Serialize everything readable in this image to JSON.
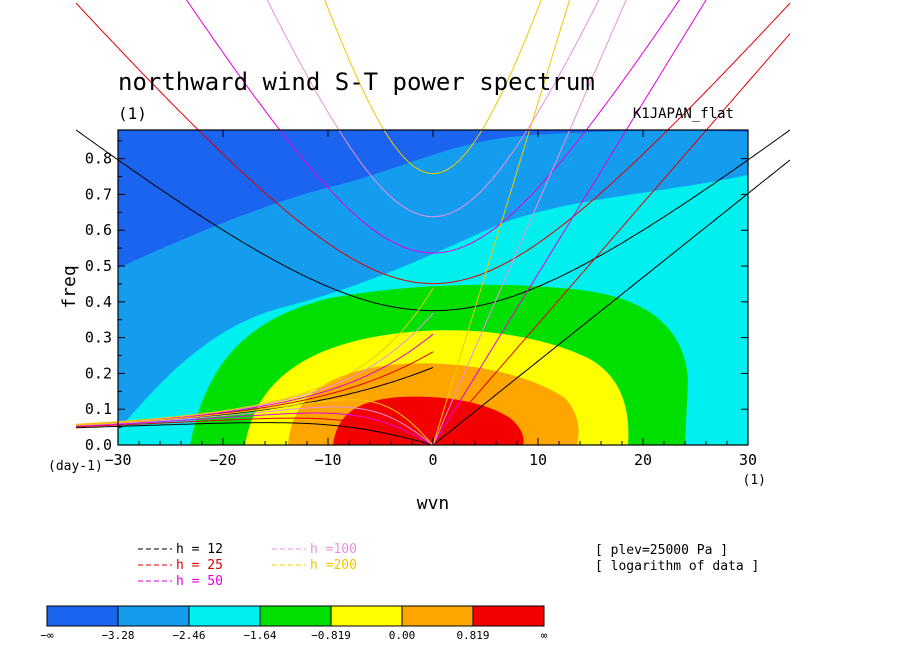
{
  "chart_data": {
    "type": "contour",
    "title": "northward wind S-T power spectrum",
    "subtitle": "(1)",
    "experiment_label": "K1JAPAN_flat",
    "xlabel": "wvn",
    "ylabel": "freq",
    "x_unit": "(1)",
    "y_unit": "(day-1)",
    "xlim": [
      -30,
      30
    ],
    "ylim": [
      0,
      0.88
    ],
    "xticks": [
      -30,
      -20,
      -10,
      0,
      10,
      20,
      30
    ],
    "yticks": [
      0.0,
      0.1,
      0.2,
      0.3,
      0.4,
      0.5,
      0.6,
      0.7,
      0.8
    ],
    "xtick_labels": [
      "−30",
      "−20",
      "−10",
      "0",
      "10",
      "20",
      "30"
    ],
    "ytick_labels": [
      "0.0",
      "0.1",
      "0.2",
      "0.3",
      "0.4",
      "0.5",
      "0.6",
      "0.7",
      "0.8"
    ],
    "shading_levels": [
      "−∞",
      "−3.28",
      "−2.46",
      "−1.64",
      "−0.819",
      "0.00",
      "0.819",
      "∞"
    ],
    "shading_colors": [
      "#1a64ef",
      "#149dee",
      "#00f0f0",
      "#00e000",
      "#ffff00",
      "#ffa500",
      "#f50000"
    ],
    "dispersion_curves": [
      {
        "label": "h = 12",
        "h": 12,
        "color": "#000000"
      },
      {
        "label": "h = 25",
        "h": 25,
        "color": "#e00000"
      },
      {
        "label": "h = 50",
        "h": 50,
        "color": "#e000e0"
      },
      {
        "label": "h =100",
        "h": 100,
        "color": "#e890e0"
      },
      {
        "label": "h =200",
        "h": 200,
        "color": "#f0c800"
      }
    ],
    "annotations": [
      "[ plev=25000 Pa ]",
      "[ logarithm of data ]"
    ]
  }
}
